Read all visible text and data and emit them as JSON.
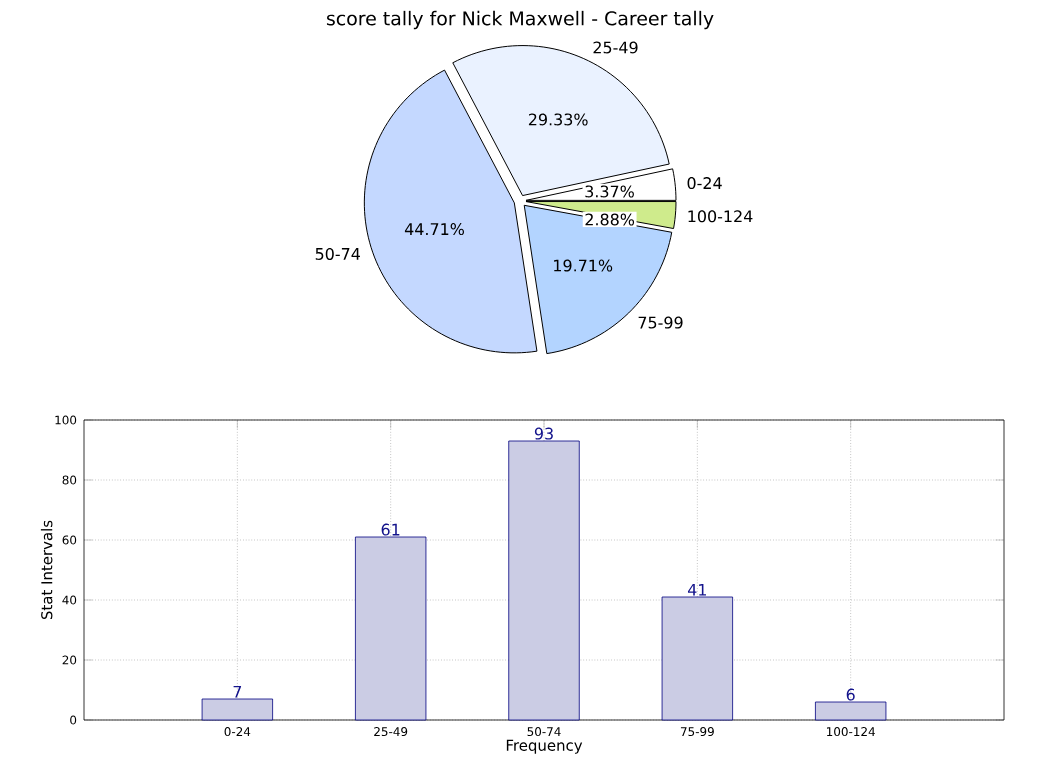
{
  "chart_data": [
    {
      "type": "pie",
      "title": "score tally for Nick Maxwell - Career tally",
      "categories": [
        "0-24",
        "25-49",
        "50-74",
        "75-99",
        "100-124"
      ],
      "values": [
        3.37,
        29.33,
        44.71,
        19.71,
        2.88
      ],
      "colors": [
        "#ffffff",
        "#eaf2ff",
        "#c4d8ff",
        "#b3d4ff",
        "#cfeb8c"
      ],
      "value_labels": [
        "3.37%",
        "29.33%",
        "44.71%",
        "19.71%",
        "2.88%"
      ]
    },
    {
      "type": "bar",
      "categories": [
        "0-24",
        "25-49",
        "50-74",
        "75-99",
        "100-124"
      ],
      "values": [
        7,
        61,
        93,
        41,
        6
      ],
      "color": "#cbcce4",
      "xlabel": "Frequency",
      "ylabel": "Stat Intervals",
      "ylim": [
        0,
        100
      ],
      "yticks": [
        0,
        20,
        40,
        60,
        80,
        100
      ],
      "grid": true,
      "data_labels": true
    }
  ]
}
